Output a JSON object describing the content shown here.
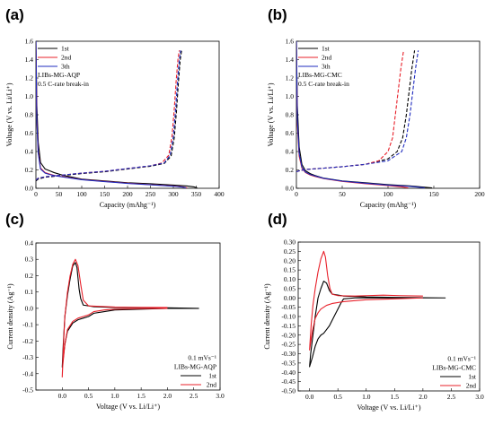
{
  "chart_data": [
    {
      "panel_label": "(a)",
      "type": "line",
      "xlabel": "Capacity (mAhg⁻¹)",
      "ylabel": "Voltage (V vs. Li/Li⁺)",
      "xlim": [
        0,
        400
      ],
      "ylim": [
        0,
        1.6
      ],
      "xticks": [
        0,
        50,
        100,
        150,
        200,
        250,
        300,
        350,
        400
      ],
      "yticks": [
        0.0,
        0.2,
        0.4,
        0.6,
        0.8,
        1.0,
        1.2,
        1.4,
        1.6
      ],
      "grid": false,
      "legend_position": "top-left",
      "annotations": [
        "LIBs-MG-AQP",
        "0.5 C-rate break-in"
      ],
      "series": [
        {
          "name": "1st",
          "color": "#000000",
          "style": "solid",
          "segment": "discharge",
          "x": [
            0,
            2,
            5,
            10,
            20,
            30,
            40,
            60,
            80,
            100,
            150,
            200,
            250,
            300,
            330,
            345,
            352
          ],
          "y": [
            1.6,
            0.9,
            0.5,
            0.28,
            0.21,
            0.19,
            0.17,
            0.14,
            0.12,
            0.1,
            0.08,
            0.06,
            0.05,
            0.035,
            0.025,
            0.015,
            0.005
          ]
        },
        {
          "name": "1st",
          "color": "#000000",
          "style": "dashed",
          "segment": "charge",
          "x": [
            0,
            5,
            20,
            50,
            100,
            150,
            200,
            250,
            280,
            295,
            302,
            307,
            311,
            315,
            318
          ],
          "y": [
            0.08,
            0.1,
            0.12,
            0.135,
            0.16,
            0.18,
            0.21,
            0.24,
            0.27,
            0.35,
            0.55,
            0.85,
            1.15,
            1.4,
            1.5
          ]
        },
        {
          "name": "2nd",
          "color": "#e8202a",
          "style": "solid",
          "segment": "discharge",
          "x": [
            0,
            2,
            5,
            10,
            20,
            30,
            40,
            60,
            80,
            100,
            150,
            200,
            250,
            300,
            320,
            330
          ],
          "y": [
            1.6,
            0.75,
            0.4,
            0.22,
            0.17,
            0.155,
            0.14,
            0.125,
            0.11,
            0.095,
            0.075,
            0.055,
            0.04,
            0.025,
            0.015,
            0.005
          ]
        },
        {
          "name": "2nd",
          "color": "#e8202a",
          "style": "dashed",
          "segment": "charge",
          "x": [
            0,
            5,
            20,
            50,
            100,
            150,
            200,
            250,
            275,
            290,
            297,
            302,
            306,
            310,
            313
          ],
          "y": [
            0.09,
            0.11,
            0.125,
            0.14,
            0.165,
            0.185,
            0.215,
            0.245,
            0.275,
            0.36,
            0.56,
            0.86,
            1.16,
            1.4,
            1.5
          ]
        },
        {
          "name": "3th",
          "color": "#1f2bbf",
          "style": "solid",
          "segment": "discharge",
          "x": [
            0,
            2,
            5,
            10,
            20,
            30,
            40,
            60,
            80,
            100,
            150,
            200,
            250,
            300,
            320,
            328
          ],
          "y": [
            1.6,
            0.72,
            0.38,
            0.21,
            0.165,
            0.15,
            0.138,
            0.122,
            0.108,
            0.093,
            0.073,
            0.053,
            0.038,
            0.023,
            0.013,
            0.005
          ]
        },
        {
          "name": "3th",
          "color": "#1f2bbf",
          "style": "dashed",
          "segment": "charge",
          "x": [
            0,
            5,
            20,
            50,
            100,
            150,
            200,
            250,
            280,
            293,
            300,
            305,
            309,
            313,
            316
          ],
          "y": [
            0.09,
            0.11,
            0.125,
            0.14,
            0.165,
            0.185,
            0.215,
            0.245,
            0.275,
            0.36,
            0.56,
            0.86,
            1.16,
            1.4,
            1.5
          ]
        }
      ]
    },
    {
      "panel_label": "(b)",
      "type": "line",
      "xlabel": "Capacity (mAhg⁻¹)",
      "ylabel": "Voltage (V vs. Li/Li⁺)",
      "xlim": [
        0,
        200
      ],
      "ylim": [
        0,
        1.6
      ],
      "xticks": [
        0,
        50,
        100,
        150,
        200
      ],
      "yticks": [
        0.0,
        0.2,
        0.4,
        0.6,
        0.8,
        1.0,
        1.2,
        1.4,
        1.6
      ],
      "grid": false,
      "legend_position": "top-left",
      "annotations": [
        "LIBs-MG-CMC",
        "0.5 C-rate break-in"
      ],
      "series": [
        {
          "name": "1st",
          "color": "#000000",
          "style": "solid",
          "segment": "discharge",
          "x": [
            0,
            1,
            3,
            6,
            10,
            15,
            20,
            30,
            50,
            75,
            100,
            125,
            140,
            148
          ],
          "y": [
            1.6,
            0.9,
            0.45,
            0.26,
            0.19,
            0.16,
            0.14,
            0.11,
            0.08,
            0.06,
            0.04,
            0.025,
            0.012,
            0.005
          ]
        },
        {
          "name": "1st",
          "color": "#000000",
          "style": "dashed",
          "segment": "charge",
          "x": [
            0,
            3,
            10,
            25,
            50,
            75,
            100,
            110,
            116,
            120,
            123,
            126,
            129
          ],
          "y": [
            0.18,
            0.19,
            0.205,
            0.215,
            0.235,
            0.26,
            0.32,
            0.4,
            0.55,
            0.8,
            1.05,
            1.3,
            1.5
          ]
        },
        {
          "name": "2nd",
          "color": "#e8202a",
          "style": "solid",
          "segment": "discharge",
          "x": [
            0,
            1,
            3,
            6,
            10,
            15,
            20,
            30,
            50,
            75,
            100,
            115,
            122
          ],
          "y": [
            1.6,
            0.7,
            0.35,
            0.22,
            0.17,
            0.145,
            0.13,
            0.105,
            0.075,
            0.05,
            0.03,
            0.015,
            0.005
          ]
        },
        {
          "name": "2nd",
          "color": "#e8202a",
          "style": "dashed",
          "segment": "charge",
          "x": [
            0,
            3,
            10,
            25,
            50,
            75,
            90,
            100,
            105,
            108,
            111,
            114,
            117
          ],
          "y": [
            0.18,
            0.19,
            0.205,
            0.215,
            0.235,
            0.26,
            0.3,
            0.4,
            0.55,
            0.8,
            1.05,
            1.3,
            1.5
          ]
        },
        {
          "name": "3th",
          "color": "#1f2bbf",
          "style": "solid",
          "segment": "discharge",
          "x": [
            0,
            1,
            3,
            6,
            10,
            15,
            20,
            30,
            50,
            75,
            100,
            125,
            135,
            140
          ],
          "y": [
            1.6,
            0.75,
            0.38,
            0.23,
            0.175,
            0.15,
            0.135,
            0.108,
            0.078,
            0.055,
            0.035,
            0.02,
            0.01,
            0.005
          ]
        },
        {
          "name": "3th",
          "color": "#1f2bbf",
          "style": "dashed",
          "segment": "charge",
          "x": [
            0,
            3,
            10,
            25,
            50,
            75,
            100,
            115,
            120,
            124,
            127,
            130,
            133
          ],
          "y": [
            0.18,
            0.19,
            0.205,
            0.215,
            0.235,
            0.26,
            0.3,
            0.4,
            0.55,
            0.8,
            1.05,
            1.3,
            1.5
          ]
        }
      ]
    },
    {
      "panel_label": "(c)",
      "type": "line",
      "xlabel": "Voltage (V vs. Li/Li⁺)",
      "ylabel": "Current density (Ag⁻¹)",
      "xlim": [
        -0.5,
        3.0
      ],
      "ylim": [
        -0.5,
        0.4
      ],
      "xticks": [
        0.0,
        0.5,
        1.0,
        1.5,
        2.0,
        2.5,
        3.0
      ],
      "yticks": [
        -0.5,
        -0.4,
        -0.3,
        -0.2,
        -0.1,
        0.0,
        0.1,
        0.2,
        0.3,
        0.4
      ],
      "grid": false,
      "legend_position": "bottom-right",
      "annotations": [
        "0.1 mVs⁻¹",
        "LIBs-MG-AQP"
      ],
      "series": [
        {
          "name": "1st",
          "color": "#000000",
          "style": "solid",
          "x": [
            2.6,
            2.0,
            1.5,
            1.0,
            0.8,
            0.6,
            0.5,
            0.4,
            0.3,
            0.2,
            0.1,
            0.05,
            0.01,
            0.0,
            0.02,
            0.05,
            0.1,
            0.15,
            0.2,
            0.25,
            0.28,
            0.32,
            0.35,
            0.4,
            0.6,
            1.0,
            1.5,
            2.0,
            2.6
          ],
          "y": [
            0.0,
            0.0,
            -0.005,
            -0.01,
            -0.02,
            -0.03,
            -0.05,
            -0.06,
            -0.07,
            -0.09,
            -0.14,
            -0.22,
            -0.33,
            -0.36,
            -0.22,
            -0.05,
            0.08,
            0.18,
            0.26,
            0.28,
            0.25,
            0.12,
            0.06,
            0.02,
            0.01,
            0.005,
            0.004,
            0.003,
            0.0
          ]
        },
        {
          "name": "2nd",
          "color": "#e8202a",
          "style": "solid",
          "x": [
            2.0,
            1.5,
            1.0,
            0.8,
            0.6,
            0.5,
            0.4,
            0.3,
            0.2,
            0.1,
            0.05,
            0.01,
            0.0,
            0.02,
            0.05,
            0.1,
            0.15,
            0.2,
            0.25,
            0.3,
            0.35,
            0.4,
            0.5,
            1.0,
            1.5,
            2.0
          ],
          "y": [
            0.0,
            -0.002,
            -0.005,
            -0.01,
            -0.02,
            -0.04,
            -0.05,
            -0.06,
            -0.08,
            -0.13,
            -0.22,
            -0.35,
            -0.42,
            -0.25,
            -0.05,
            0.1,
            0.2,
            0.27,
            0.3,
            0.26,
            0.15,
            0.05,
            0.015,
            0.008,
            0.006,
            0.005
          ]
        }
      ]
    },
    {
      "panel_label": "(d)",
      "type": "line",
      "xlabel": "Voltage (V vs. Li/Li⁺)",
      "ylabel": "Current density (Ag⁻¹)",
      "xlim": [
        -0.2,
        3.0
      ],
      "ylim": [
        -0.5,
        0.3
      ],
      "xticks": [
        0.0,
        0.5,
        1.0,
        1.5,
        2.0,
        2.5,
        3.0
      ],
      "yticks": [
        -0.5,
        -0.45,
        -0.4,
        -0.35,
        -0.3,
        -0.25,
        -0.2,
        -0.15,
        -0.1,
        -0.05,
        0.0,
        0.05,
        0.1,
        0.15,
        0.2,
        0.25,
        0.3
      ],
      "grid": false,
      "legend_position": "bottom-right",
      "annotations": [
        "0.1 mVs⁻¹",
        "LIBs-MG-CMC"
      ],
      "series": [
        {
          "name": "1st",
          "color": "#000000",
          "style": "solid",
          "x": [
            2.4,
            2.0,
            1.5,
            1.0,
            0.8,
            0.6,
            0.55,
            0.5,
            0.45,
            0.4,
            0.35,
            0.3,
            0.25,
            0.2,
            0.15,
            0.1,
            0.05,
            0.0,
            0.02,
            0.06,
            0.1,
            0.15,
            0.2,
            0.25,
            0.3,
            0.35,
            0.4,
            0.6,
            1.0,
            1.5,
            2.0,
            2.4
          ],
          "y": [
            0.0,
            0.0,
            0.0,
            0.0,
            0.0,
            -0.005,
            -0.03,
            -0.06,
            -0.09,
            -0.12,
            -0.15,
            -0.17,
            -0.19,
            -0.2,
            -0.22,
            -0.26,
            -0.32,
            -0.37,
            -0.3,
            -0.2,
            -0.1,
            0.0,
            0.05,
            0.09,
            0.08,
            0.04,
            0.02,
            0.01,
            0.005,
            0.003,
            0.001,
            0.0
          ]
        },
        {
          "name": "2nd",
          "color": "#e8202a",
          "style": "solid",
          "x": [
            2.0,
            1.5,
            1.0,
            0.8,
            0.6,
            0.5,
            0.4,
            0.3,
            0.2,
            0.15,
            0.1,
            0.05,
            0.0,
            0.03,
            0.06,
            0.1,
            0.15,
            0.2,
            0.25,
            0.28,
            0.32,
            0.36,
            0.4,
            0.5,
            0.8,
            1.0,
            1.3,
            1.6,
            2.0
          ],
          "y": [
            0.0,
            -0.005,
            -0.01,
            -0.015,
            -0.02,
            -0.025,
            -0.03,
            -0.04,
            -0.06,
            -0.08,
            -0.11,
            -0.18,
            -0.28,
            -0.14,
            -0.04,
            0.05,
            0.14,
            0.21,
            0.25,
            0.22,
            0.12,
            0.05,
            0.02,
            0.012,
            0.01,
            0.012,
            0.015,
            0.012,
            0.01
          ]
        }
      ]
    }
  ]
}
